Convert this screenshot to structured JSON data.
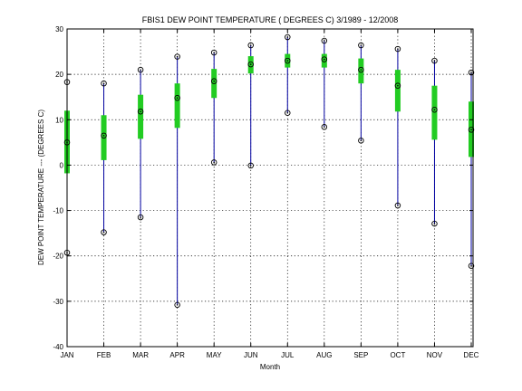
{
  "chart_data": {
    "type": "box",
    "title": "FBIS1  DEW POINT TEMPERATURE ( DEGREES C) 3/1989 - 12/2008",
    "xlabel": "Month",
    "ylabel": "DEW POINT TEMPERATURE --- (DEGREES C)",
    "ylim": [
      -40,
      30
    ],
    "yticks": [
      -40,
      -30,
      -20,
      -10,
      0,
      10,
      20,
      30
    ],
    "grid": true,
    "categories": [
      "JAN",
      "FEB",
      "MAR",
      "APR",
      "MAY",
      "JUN",
      "JUL",
      "AUG",
      "SEP",
      "OCT",
      "NOV",
      "DEC"
    ],
    "min": [
      -19.3,
      -14.8,
      -11.5,
      -30.8,
      0.6,
      -0.1,
      11.5,
      8.4,
      5.4,
      -8.9,
      -12.9,
      -22.2
    ],
    "q1": [
      -1.8,
      1.1,
      5.8,
      8.2,
      14.8,
      20.2,
      21.5,
      21.5,
      18.0,
      11.8,
      5.6,
      1.8
    ],
    "mean": [
      5.0,
      6.5,
      11.8,
      14.8,
      18.5,
      22.2,
      23.0,
      23.3,
      21.0,
      17.5,
      12.2,
      7.8
    ],
    "q3": [
      12.0,
      11.0,
      15.5,
      18.0,
      21.2,
      24.0,
      24.5,
      24.5,
      23.5,
      21.0,
      17.5,
      14.0
    ],
    "max": [
      18.3,
      18.0,
      21.0,
      23.9,
      24.8,
      26.4,
      28.2,
      27.4,
      26.4,
      25.6,
      23.0,
      20.4
    ],
    "colors": {
      "whisker": "#0000a0",
      "box": "#22cc22",
      "marker": "#000000",
      "grid": "#000000"
    }
  }
}
